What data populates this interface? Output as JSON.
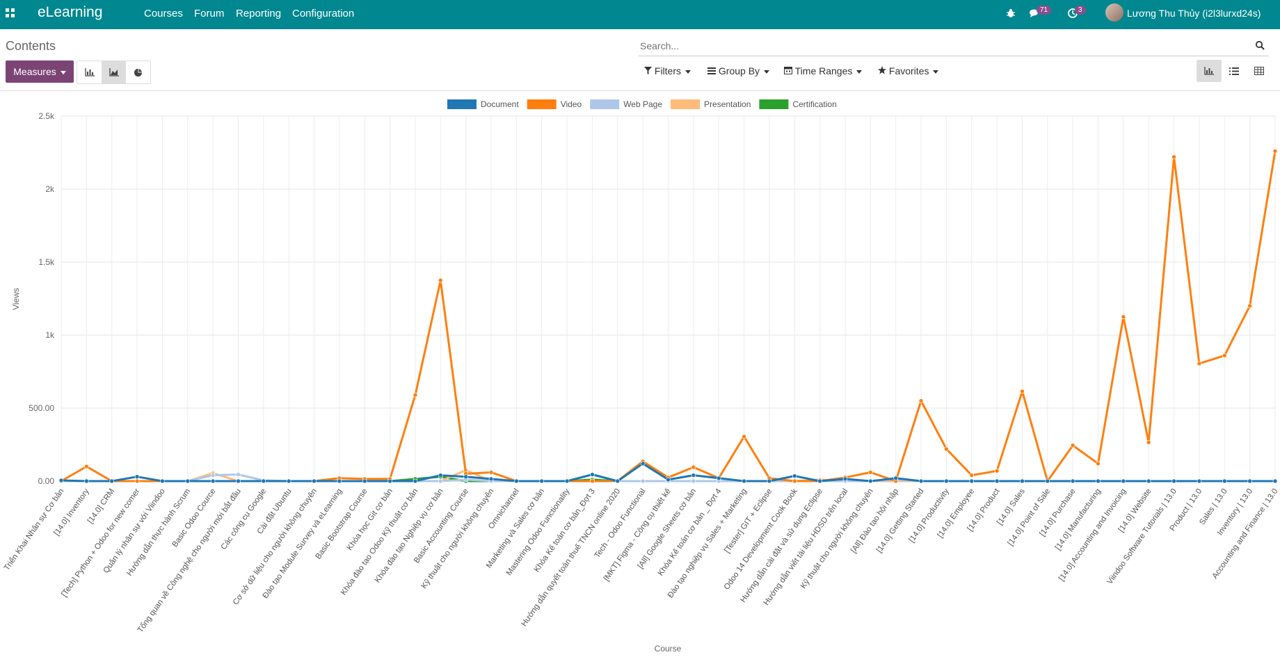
{
  "app": {
    "brand": "eLearning",
    "menu": [
      "Courses",
      "Forum",
      "Reporting",
      "Configuration"
    ],
    "chat_badge": "71",
    "activity_badge": "3",
    "user": "Lương Thu Thủy (i2l3lurxd24s)"
  },
  "control_panel": {
    "title": "Contents",
    "search_placeholder": "Search...",
    "measures_label": "Measures",
    "filters_label": "Filters",
    "groupby_label": "Group By",
    "timeranges_label": "Time Ranges",
    "favorites_label": "Favorites"
  },
  "colors": {
    "topbar": "#00878f",
    "measures": "#7c4475",
    "Document": "#1f77b4",
    "Video": "#ff7f0e",
    "Web Page": "#aec7e8",
    "Presentation": "#ffbb78",
    "Certification": "#2ca02c"
  },
  "chart_data": {
    "type": "line",
    "xlabel": "Course",
    "ylabel": "Views",
    "ylim": [
      0,
      2500
    ],
    "yticks": [
      "0.00",
      "500.00",
      "1k",
      "1.5k",
      "2k",
      "2.5k"
    ],
    "grid": true,
    "legend_position": "top",
    "categories": [
      "Triển Khai Nhân sự Cơ bản",
      "[14.0] Inventory",
      "[14.0] CRM",
      "[Tech] Python + Odoo for new comer",
      "Quản lý nhân sự với Viindoo",
      "Hướng dẫn thực hành Scrum",
      "Basic Odoo Cource",
      "Tổng quan về Công nghệ cho người mới bắt đầu",
      "Các công cụ Google",
      "Cài đặt Ubuntu",
      "Cơ sở dữ liệu cho người không chuyên",
      "Đào tạo Module Survey và eLearning",
      "Basic Bootstrap Course",
      "Khóa học Git cơ bản",
      "Khóa đào tạo Odoo Kỹ thuật cơ bản",
      "Khóa đào tạo Nghiệp vụ cơ bản",
      "Basic Accounting Course",
      "Kỹ thuật cho người không chuyên",
      "Omnichannel",
      "Marketing và Sales cơ bản",
      "Mastering Odoo Functionality",
      "Khóa Kế toán cơ bản_Đợt 3",
      "Hướng dẫn quyết toán thuế TNCN online 2020",
      "Tech - Odoo Functional",
      "[MKT] Figma - Công cụ thiết kế",
      "[All] Google Sheets cơ bản",
      "Khóa Kế toán cơ bản _ Đợt 4",
      "Đào tạo nghiệp vụ Sales + Marketing",
      "[Tester] GIT + Eclipse",
      "Odoo 14 Development Cook Book",
      "Hướng dẫn cài đặt và sử dụng Eclipse",
      "Hướng dẫn viết tài liệu HDSD trên local",
      "Kỹ thuật cho người không chuyên",
      "[All] Đào tạo hội nhập",
      "[14.0] Getting Started",
      "[14.0] Productivity",
      "[14.0] Employee",
      "[14.0] Product",
      "[14.0] Sales",
      "[14.0] Point of Sale",
      "[14.0] Purchase",
      "[14.0] Manufacturing",
      "[14.0] Accounting and Invoicing",
      "[14.0] Website",
      "Viindoo Software Tutorials | 13.0",
      "Product | 13.0",
      "Sales | 13.0",
      "Inventory | 13.0",
      "Accounting and Finance | 13.0"
    ],
    "series": [
      {
        "name": "Document",
        "values": [
          5,
          0,
          0,
          30,
          0,
          0,
          0,
          0,
          0,
          0,
          0,
          0,
          0,
          0,
          0,
          40,
          30,
          15,
          0,
          0,
          0,
          45,
          0,
          120,
          10,
          40,
          20,
          0,
          0,
          35,
          0,
          15,
          0,
          20,
          0,
          0,
          0,
          0,
          0,
          0,
          0,
          0,
          0,
          0,
          0,
          0,
          0,
          0,
          0
        ]
      },
      {
        "name": "Video",
        "values": [
          0,
          100,
          0,
          0,
          0,
          0,
          0,
          0,
          0,
          0,
          0,
          20,
          15,
          15,
          590,
          1375,
          50,
          60,
          0,
          0,
          0,
          0,
          0,
          135,
          25,
          95,
          20,
          305,
          20,
          0,
          0,
          25,
          60,
          0,
          550,
          220,
          40,
          70,
          615,
          0,
          245,
          120,
          1125,
          265,
          2220,
          805,
          860,
          1200,
          2260
        ]
      },
      {
        "name": "Web Page",
        "values": [
          0,
          0,
          0,
          0,
          0,
          0,
          40,
          45,
          5,
          0,
          0,
          0,
          0,
          0,
          0,
          0,
          10,
          0,
          0,
          0,
          0,
          0,
          0,
          0,
          0,
          0,
          0,
          0,
          0,
          0,
          0,
          0,
          0,
          10,
          0,
          0,
          0,
          0,
          0,
          0,
          0,
          0,
          0,
          0,
          0,
          0,
          0,
          0,
          0
        ]
      },
      {
        "name": "Presentation",
        "values": [
          0,
          0,
          0,
          0,
          0,
          0,
          55,
          0,
          0,
          0,
          0,
          0,
          0,
          0,
          0,
          0,
          75,
          0,
          0,
          0,
          0,
          0,
          0,
          0,
          0,
          0,
          0,
          0,
          0,
          0,
          10,
          0,
          0,
          0,
          0,
          0,
          0,
          0,
          0,
          0,
          0,
          0,
          0,
          0,
          0,
          0,
          0,
          0,
          0
        ]
      },
      {
        "name": "Certification",
        "values": [
          0,
          0,
          0,
          0,
          0,
          0,
          0,
          0,
          0,
          0,
          0,
          0,
          0,
          0,
          15,
          30,
          0,
          0,
          0,
          0,
          0,
          10,
          0,
          0,
          0,
          0,
          0,
          0,
          0,
          0,
          0,
          0,
          0,
          0,
          0,
          0,
          0,
          0,
          0,
          0,
          0,
          0,
          0,
          0,
          0,
          0,
          0,
          0,
          0
        ]
      }
    ]
  }
}
